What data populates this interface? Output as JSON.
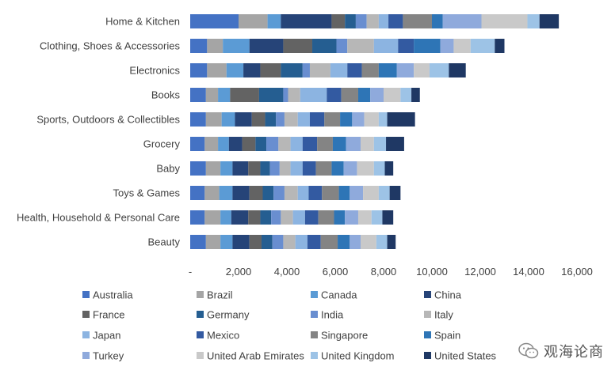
{
  "chart_data": {
    "type": "bar",
    "orientation": "horizontal",
    "stacked": true,
    "categories": [
      "Home & Kitchen",
      "Clothing, Shoes & Accessories",
      "Electronics",
      "Books",
      "Sports, Outdoors & Collectibles",
      "Grocery",
      "Baby",
      "Toys & Games",
      "Health, Household & Personal Care",
      "Beauty"
    ],
    "x_ticks": [
      "-",
      "2,000",
      "4,000",
      "6,000",
      "8,000",
      "10,000",
      "12,000",
      "14,000",
      "16,000"
    ],
    "xlim": [
      0,
      16000
    ],
    "grid": false,
    "legend_position": "bottom",
    "series": [
      {
        "name": "Australia",
        "color": "#4472C4",
        "values": [
          2000,
          700,
          700,
          650,
          650,
          600,
          650,
          600,
          600,
          650
        ]
      },
      {
        "name": "Brazil",
        "color": "#A5A5A5",
        "values": [
          1200,
          650,
          800,
          500,
          650,
          550,
          600,
          600,
          650,
          600
        ]
      },
      {
        "name": "Canada",
        "color": "#5B9BD5",
        "values": [
          550,
          1100,
          700,
          500,
          550,
          450,
          500,
          550,
          450,
          500
        ]
      },
      {
        "name": "China",
        "color": "#264478",
        "values": [
          2100,
          1400,
          700,
          0,
          700,
          550,
          650,
          700,
          700,
          700
        ]
      },
      {
        "name": "France",
        "color": "#636363",
        "values": [
          550,
          1200,
          850,
          1200,
          550,
          550,
          500,
          550,
          500,
          500
        ]
      },
      {
        "name": "Germany",
        "color": "#255E91",
        "values": [
          450,
          1000,
          900,
          1000,
          450,
          450,
          400,
          450,
          450,
          450
        ]
      },
      {
        "name": "India",
        "color": "#698ED0",
        "values": [
          450,
          450,
          300,
          200,
          350,
          500,
          400,
          450,
          400,
          450
        ]
      },
      {
        "name": "Italy",
        "color": "#B7B7B7",
        "values": [
          500,
          1100,
          850,
          500,
          550,
          500,
          450,
          550,
          500,
          500
        ]
      },
      {
        "name": "Japan",
        "color": "#8CB4E1",
        "values": [
          400,
          1000,
          700,
          1100,
          500,
          500,
          500,
          450,
          500,
          500
        ]
      },
      {
        "name": "Mexico",
        "color": "#335AA1",
        "values": [
          600,
          650,
          600,
          600,
          600,
          600,
          550,
          550,
          550,
          550
        ]
      },
      {
        "name": "Singapore",
        "color": "#848484",
        "values": [
          1200,
          0,
          700,
          700,
          650,
          650,
          650,
          700,
          650,
          700
        ]
      },
      {
        "name": "Spain",
        "color": "#2E75B6",
        "values": [
          450,
          1100,
          750,
          500,
          500,
          550,
          500,
          450,
          450,
          500
        ]
      },
      {
        "name": "Turkey",
        "color": "#8FAADC",
        "values": [
          1600,
          550,
          700,
          550,
          500,
          600,
          550,
          550,
          550,
          450
        ]
      },
      {
        "name": "United Arab Emirates",
        "color": "#C9C9C9",
        "values": [
          1900,
          700,
          650,
          700,
          600,
          550,
          700,
          650,
          550,
          650
        ]
      },
      {
        "name": "United Kingdom",
        "color": "#9DC3E6",
        "values": [
          500,
          1000,
          800,
          450,
          350,
          500,
          450,
          450,
          450,
          450
        ]
      },
      {
        "name": "United States",
        "color": "#1F3864",
        "values": [
          800,
          400,
          700,
          350,
          1150,
          750,
          350,
          450,
          450,
          350
        ]
      }
    ]
  },
  "watermark": {
    "text": "观海论商",
    "icon": "wechat-logo-icon"
  }
}
